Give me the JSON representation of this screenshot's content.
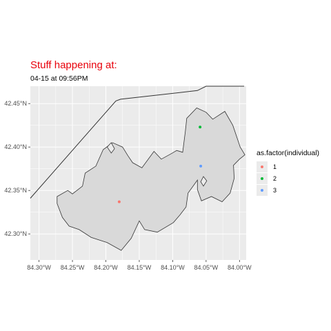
{
  "header": {
    "title": "Stuff happening at:",
    "subtitle": "04-15 at 09:56PM"
  },
  "chart_data": {
    "type": "scatter",
    "map": "polygon boundaries",
    "xlabel": "",
    "ylabel": "",
    "x_ticks": [
      {
        "value": -84.3,
        "label": "84.30°W"
      },
      {
        "value": -84.25,
        "label": "84.25°W"
      },
      {
        "value": -84.2,
        "label": "84.20°W"
      },
      {
        "value": -84.15,
        "label": "84.15°W"
      },
      {
        "value": -84.1,
        "label": "84.10°W"
      },
      {
        "value": -84.05,
        "label": "84.05°W"
      },
      {
        "value": -84.0,
        "label": "84.00°W"
      }
    ],
    "y_ticks": [
      {
        "value": 42.3,
        "label": "42.30°N"
      },
      {
        "value": 42.35,
        "label": "42.35°N"
      },
      {
        "value": 42.4,
        "label": "42.40°N"
      },
      {
        "value": 42.45,
        "label": "42.45°N"
      }
    ],
    "xlim": [
      -84.313,
      -83.99
    ],
    "ylim": [
      42.27,
      42.47
    ],
    "grid": true,
    "legend": {
      "title": "as.factor(individual)",
      "placement": "right",
      "entries": [
        {
          "label": "1",
          "color": "#F8766D"
        },
        {
          "label": "2",
          "color": "#00BA38"
        },
        {
          "label": "3",
          "color": "#619CFF"
        }
      ]
    },
    "points": [
      {
        "individual": "1",
        "lon": -84.18,
        "lat": 42.337,
        "color": "#F8766D"
      },
      {
        "individual": "2",
        "lon": -84.059,
        "lat": 42.423,
        "color": "#00BA38"
      },
      {
        "individual": "3",
        "lon": -84.058,
        "lat": 42.378,
        "color": "#619CFF"
      }
    ],
    "boundary_line": [
      [
        -84.313,
        42.341
      ],
      [
        -84.185,
        42.453
      ],
      [
        -84.178,
        42.455
      ],
      [
        -84.063,
        42.465
      ],
      [
        -84.05,
        42.47
      ],
      [
        -84.005,
        42.47
      ],
      [
        -83.993,
        42.47
      ]
    ],
    "polygons": [
      [
        [
          -84.235,
          42.355
        ],
        [
          -84.231,
          42.37
        ],
        [
          -84.215,
          42.378
        ],
        [
          -84.204,
          42.397
        ],
        [
          -84.19,
          42.405
        ],
        [
          -84.175,
          42.4
        ],
        [
          -84.167,
          42.39
        ],
        [
          -84.16,
          42.382
        ],
        [
          -84.146,
          42.376
        ],
        [
          -84.128,
          42.395
        ],
        [
          -84.117,
          42.386
        ],
        [
          -84.103,
          42.392
        ],
        [
          -84.094,
          42.396
        ],
        [
          -84.085,
          42.394
        ],
        [
          -84.081,
          42.418
        ],
        [
          -84.079,
          42.433
        ],
        [
          -84.064,
          42.445
        ],
        [
          -84.05,
          42.44
        ],
        [
          -84.04,
          42.432
        ],
        [
          -84.022,
          42.441
        ],
        [
          -84.01,
          42.425
        ],
        [
          -83.999,
          42.4
        ],
        [
          -83.992,
          42.391
        ],
        [
          -84.0,
          42.386
        ],
        [
          -84.009,
          42.379
        ],
        [
          -84.008,
          42.364
        ],
        [
          -84.014,
          42.347
        ],
        [
          -84.026,
          42.337
        ],
        [
          -84.042,
          42.343
        ],
        [
          -84.057,
          42.338
        ],
        [
          -84.063,
          42.351
        ],
        [
          -84.063,
          42.362
        ],
        [
          -84.077,
          42.347
        ],
        [
          -84.08,
          42.331
        ],
        [
          -84.089,
          42.322
        ],
        [
          -84.099,
          42.313
        ],
        [
          -84.123,
          42.302
        ],
        [
          -84.142,
          42.305
        ],
        [
          -84.15,
          42.315
        ],
        [
          -84.162,
          42.295
        ],
        [
          -84.177,
          42.281
        ],
        [
          -84.198,
          42.29
        ],
        [
          -84.222,
          42.296
        ],
        [
          -84.24,
          42.305
        ],
        [
          -84.255,
          42.309
        ],
        [
          -84.265,
          42.319
        ],
        [
          -84.273,
          42.335
        ],
        [
          -84.273,
          42.343
        ],
        [
          -84.257,
          42.35
        ],
        [
          -84.25,
          42.346
        ],
        [
          -84.235,
          42.355
        ]
      ],
      [
        [
          -84.198,
          42.4
        ],
        [
          -84.192,
          42.405
        ],
        [
          -84.187,
          42.398
        ],
        [
          -84.192,
          42.393
        ],
        [
          -84.198,
          42.4
        ]
      ],
      [
        [
          -84.058,
          42.36
        ],
        [
          -84.054,
          42.366
        ],
        [
          -84.049,
          42.361
        ],
        [
          -84.054,
          42.355
        ],
        [
          -84.058,
          42.36
        ]
      ]
    ]
  }
}
